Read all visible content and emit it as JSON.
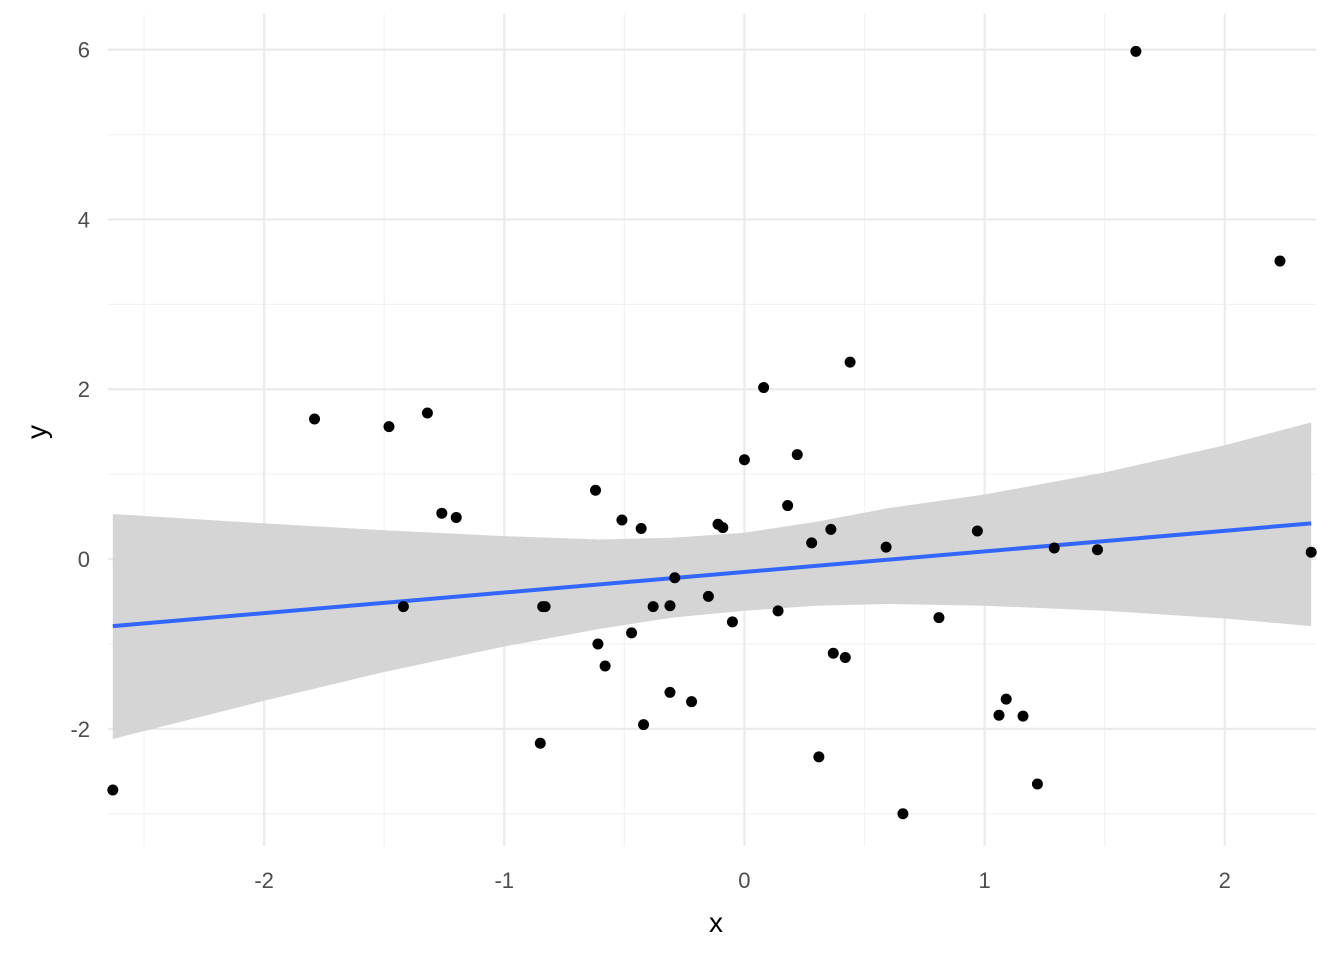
{
  "chart_data": {
    "type": "scatter",
    "title": "",
    "xlabel": "x",
    "ylabel": "y",
    "xlim": [
      -2.65,
      2.38
    ],
    "ylim": [
      -3.38,
      6.42
    ],
    "x_ticks": [
      -2,
      -1,
      0,
      1,
      2
    ],
    "x_tick_labels": [
      "-2",
      "-1",
      "0",
      "1",
      "2"
    ],
    "y_ticks": [
      -2,
      0,
      2,
      4,
      6
    ],
    "y_tick_labels": [
      "-2",
      "0",
      "2",
      "4",
      "6"
    ],
    "grid": true,
    "legend": "none",
    "colors": {
      "points": "#000000",
      "fit_line": "#3366ff",
      "confidence_band": "#d3d3d3",
      "grid_major": "#ebebeb",
      "grid_minor": "#f3f3f3"
    },
    "points": [
      {
        "x": -2.63,
        "y": -2.72
      },
      {
        "x": -1.79,
        "y": 1.65
      },
      {
        "x": -1.48,
        "y": 1.56
      },
      {
        "x": -1.42,
        "y": -0.56
      },
      {
        "x": -1.32,
        "y": 1.72
      },
      {
        "x": -1.26,
        "y": 0.54
      },
      {
        "x": -1.2,
        "y": 0.49
      },
      {
        "x": -0.85,
        "y": -2.17
      },
      {
        "x": -0.84,
        "y": -0.56
      },
      {
        "x": -0.83,
        "y": -0.56
      },
      {
        "x": -0.62,
        "y": 0.81
      },
      {
        "x": -0.61,
        "y": -1.0
      },
      {
        "x": -0.58,
        "y": -1.26
      },
      {
        "x": -0.51,
        "y": 0.46
      },
      {
        "x": -0.47,
        "y": -0.87
      },
      {
        "x": -0.43,
        "y": 0.36
      },
      {
        "x": -0.42,
        "y": -1.95
      },
      {
        "x": -0.38,
        "y": -0.56
      },
      {
        "x": -0.31,
        "y": -0.55
      },
      {
        "x": -0.31,
        "y": -1.57
      },
      {
        "x": -0.29,
        "y": -0.22
      },
      {
        "x": -0.22,
        "y": -1.68
      },
      {
        "x": -0.15,
        "y": -0.44
      },
      {
        "x": -0.11,
        "y": 0.41
      },
      {
        "x": -0.09,
        "y": 0.37
      },
      {
        "x": -0.05,
        "y": -0.74
      },
      {
        "x": 0.0,
        "y": 1.17
      },
      {
        "x": 0.08,
        "y": 2.02
      },
      {
        "x": 0.14,
        "y": -0.61
      },
      {
        "x": 0.18,
        "y": 0.63
      },
      {
        "x": 0.22,
        "y": 1.23
      },
      {
        "x": 0.28,
        "y": 0.19
      },
      {
        "x": 0.31,
        "y": -2.33
      },
      {
        "x": 0.36,
        "y": 0.35
      },
      {
        "x": 0.37,
        "y": -1.11
      },
      {
        "x": 0.42,
        "y": -1.16
      },
      {
        "x": 0.44,
        "y": 2.32
      },
      {
        "x": 0.59,
        "y": 0.14
      },
      {
        "x": 0.66,
        "y": -3.0
      },
      {
        "x": 0.81,
        "y": -0.69
      },
      {
        "x": 0.97,
        "y": 0.33
      },
      {
        "x": 1.06,
        "y": -1.84
      },
      {
        "x": 1.09,
        "y": -1.65
      },
      {
        "x": 1.16,
        "y": -1.85
      },
      {
        "x": 1.22,
        "y": -2.65
      },
      {
        "x": 1.29,
        "y": 0.13
      },
      {
        "x": 1.47,
        "y": 0.11
      },
      {
        "x": 1.63,
        "y": 5.98
      },
      {
        "x": 2.23,
        "y": 3.51
      },
      {
        "x": 2.36,
        "y": 0.08
      }
    ],
    "fit_line": [
      {
        "x": -2.63,
        "y": -0.79
      },
      {
        "x": 2.36,
        "y": 0.42
      }
    ],
    "confidence_band": {
      "upper": [
        {
          "x": -2.63,
          "y": 0.53
        },
        {
          "x": -2.0,
          "y": 0.42
        },
        {
          "x": -1.5,
          "y": 0.34
        },
        {
          "x": -1.0,
          "y": 0.27
        },
        {
          "x": -0.6,
          "y": 0.23
        },
        {
          "x": -0.3,
          "y": 0.25
        },
        {
          "x": 0.0,
          "y": 0.31
        },
        {
          "x": 0.3,
          "y": 0.44
        },
        {
          "x": 0.6,
          "y": 0.6
        },
        {
          "x": 1.0,
          "y": 0.76
        },
        {
          "x": 1.5,
          "y": 1.02
        },
        {
          "x": 2.0,
          "y": 1.34
        },
        {
          "x": 2.36,
          "y": 1.61
        }
      ],
      "lower": [
        {
          "x": -2.63,
          "y": -2.12
        },
        {
          "x": -2.0,
          "y": -1.67
        },
        {
          "x": -1.5,
          "y": -1.33
        },
        {
          "x": -1.0,
          "y": -1.03
        },
        {
          "x": -0.6,
          "y": -0.82
        },
        {
          "x": -0.3,
          "y": -0.69
        },
        {
          "x": 0.0,
          "y": -0.61
        },
        {
          "x": 0.3,
          "y": -0.55
        },
        {
          "x": 0.6,
          "y": -0.53
        },
        {
          "x": 1.0,
          "y": -0.55
        },
        {
          "x": 1.5,
          "y": -0.61
        },
        {
          "x": 2.0,
          "y": -0.7
        },
        {
          "x": 2.36,
          "y": -0.79
        }
      ]
    }
  }
}
